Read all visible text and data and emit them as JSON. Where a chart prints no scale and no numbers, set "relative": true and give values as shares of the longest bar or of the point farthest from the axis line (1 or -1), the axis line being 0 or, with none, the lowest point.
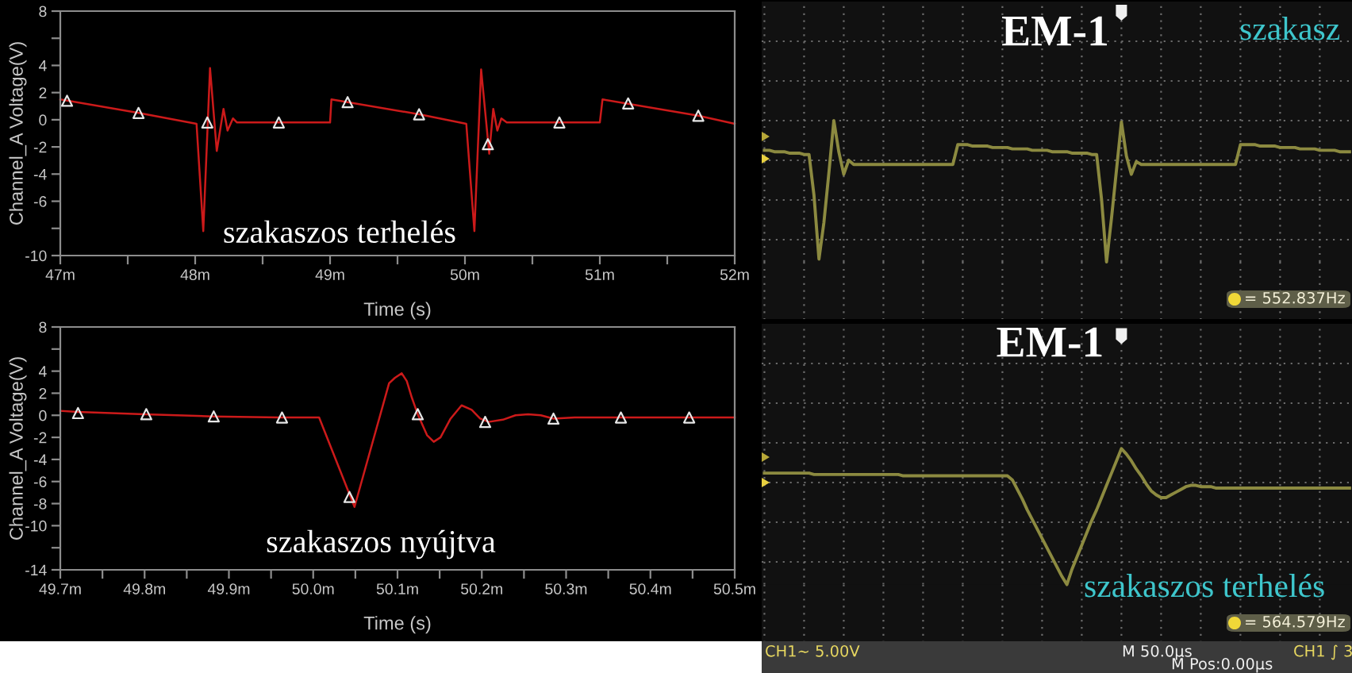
{
  "chart_data": [
    {
      "type": "line",
      "xlabel": "Time (s)",
      "ylabel": "Channel_A Voltage(V)",
      "x": [
        47,
        47.58,
        48.01,
        48.06,
        48.11,
        48.16,
        48.21,
        48.24,
        48.28,
        48.31,
        49.0,
        49.01,
        49.66,
        50.01,
        50.07,
        50.12,
        50.18,
        50.21,
        50.24,
        50.27,
        50.31,
        51.0,
        51.02,
        51.73,
        52.0
      ],
      "series": [
        {
          "color": "#cc1a1a",
          "values": [
            1.5,
            0.5,
            -0.3,
            -8.2,
            3.8,
            -2.3,
            0.8,
            -0.8,
            0.1,
            -0.2,
            -0.2,
            1.5,
            0.4,
            -0.3,
            -8.2,
            3.7,
            -2.5,
            0.8,
            -0.8,
            0.1,
            -0.2,
            -0.2,
            1.5,
            0.3,
            -0.3
          ]
        },
        {
          "type": "scatter",
          "marker": "triangle",
          "color": "#e6e6e6",
          "x": [
            47.05,
            47.58,
            48.09,
            48.62,
            49.13,
            49.66,
            50.17,
            50.7,
            51.21,
            51.73
          ],
          "values": [
            1.4,
            0.5,
            -0.2,
            -0.2,
            1.3,
            0.4,
            -1.8,
            -0.2,
            1.2,
            0.3
          ]
        }
      ],
      "xlim": [
        47,
        52
      ],
      "xticks": [
        {
          "value": 47,
          "label": "47m"
        },
        {
          "value": 47.5,
          "label": null
        },
        {
          "value": 48,
          "label": "48m"
        },
        {
          "value": 48.5,
          "label": null
        },
        {
          "value": 49,
          "label": "49m"
        },
        {
          "value": 49.5,
          "label": null
        },
        {
          "value": 50,
          "label": "50m"
        },
        {
          "value": 50.5,
          "label": null
        },
        {
          "value": 51,
          "label": "51m"
        },
        {
          "value": 51.5,
          "label": null
        },
        {
          "value": 52,
          "label": "52m"
        }
      ],
      "ylim": [
        -10,
        8
      ],
      "yticks": [
        8,
        {
          "value": 6,
          "label": null
        },
        4,
        2,
        0,
        -2,
        -4,
        -6,
        {
          "value": -8,
          "label": null
        },
        -10
      ],
      "annotations": [
        "szakaszos terhelés"
      ]
    },
    {
      "type": "line",
      "relative": true,
      "title": "EM-1",
      "grid": true,
      "tick_labels": false,
      "categories": [
        null,
        null,
        null,
        null,
        null,
        null,
        null,
        null,
        null,
        null,
        null,
        null,
        null,
        null,
        null,
        null,
        null,
        null,
        null,
        null,
        null,
        null,
        null,
        null,
        null,
        null,
        null,
        null,
        null,
        null,
        null,
        null,
        null,
        null,
        null,
        null,
        null,
        null,
        null,
        null,
        null,
        null,
        null,
        null,
        null,
        null,
        null,
        null,
        null,
        null,
        null,
        null,
        null,
        null,
        null,
        null,
        null,
        null,
        null,
        null,
        null,
        null,
        null,
        null,
        null,
        null,
        null,
        null,
        null,
        null,
        null,
        null,
        null,
        null,
        null,
        null,
        null,
        null,
        null,
        null,
        null,
        null,
        null,
        null,
        null,
        null,
        null,
        null,
        null,
        null,
        null,
        null,
        null,
        null,
        null,
        null,
        null,
        null,
        null,
        null,
        null,
        null,
        null,
        null,
        null,
        null,
        null,
        null,
        null,
        null,
        null,
        null,
        null,
        null,
        null,
        null,
        null,
        null,
        null
      ],
      "series": [
        {
          "color": "#8c8a40",
          "values": [
            0.79,
            0.79,
            0.78,
            0.78,
            0.78,
            0.77,
            0.77,
            0.77,
            0.76,
            0.76,
            0.47,
            0.02,
            0.28,
            0.63,
            1.0,
            0.78,
            0.62,
            0.72,
            0.69,
            0.69,
            0.69,
            0.69,
            0.69,
            0.69,
            0.69,
            0.69,
            0.69,
            0.69,
            0.69,
            0.69,
            0.69,
            0.69,
            0.69,
            0.69,
            0.69,
            0.69,
            0.69,
            0.69,
            0.69,
            0.83,
            0.83,
            0.83,
            0.82,
            0.82,
            0.82,
            0.82,
            0.81,
            0.81,
            0.81,
            0.81,
            0.8,
            0.8,
            0.8,
            0.8,
            0.79,
            0.79,
            0.79,
            0.79,
            0.78,
            0.78,
            0.78,
            0.78,
            0.77,
            0.77,
            0.77,
            0.77,
            0.76,
            0.76,
            0.44,
            0.0,
            0.31,
            0.65,
            0.99,
            0.75,
            0.62,
            0.71,
            0.69,
            0.69,
            0.69,
            0.69,
            0.69,
            0.69,
            0.69,
            0.69,
            0.69,
            0.69,
            0.69,
            0.69,
            0.69,
            0.69,
            0.69,
            0.69,
            0.69,
            0.69,
            0.69,
            0.69,
            0.83,
            0.83,
            0.83,
            0.83,
            0.82,
            0.82,
            0.82,
            0.82,
            0.81,
            0.81,
            0.81,
            0.81,
            0.8,
            0.8,
            0.8,
            0.8,
            0.79,
            0.79,
            0.79,
            0.79,
            0.78,
            0.78,
            0.78
          ]
        }
      ],
      "annotations": [
        "szakasz",
        "= 552.837Hz"
      ]
    },
    {
      "type": "line",
      "xlabel": "Time (s)",
      "ylabel": "Channel_A Voltage(V)",
      "x": [
        49.7,
        49.72,
        49.8,
        49.88,
        49.96,
        50.007,
        50.049,
        50.09,
        50.097,
        50.105,
        50.111,
        50.117,
        50.124,
        50.135,
        50.143,
        50.151,
        50.163,
        50.176,
        50.188,
        50.198,
        50.208,
        50.225,
        50.24,
        50.255,
        50.27,
        50.285,
        50.31,
        50.5
      ],
      "series": [
        {
          "color": "#cc1a1a",
          "values": [
            0.4,
            0.3,
            0.1,
            -0.1,
            -0.2,
            -0.2,
            -8.3,
            2.9,
            3.4,
            3.8,
            3.1,
            1.6,
            0.1,
            -1.8,
            -2.4,
            -2.0,
            -0.3,
            0.9,
            0.5,
            -0.3,
            -0.6,
            -0.4,
            0.0,
            0.1,
            0.0,
            -0.3,
            -0.2,
            -0.2
          ]
        },
        {
          "type": "scatter",
          "marker": "triangle",
          "color": "#e6e6e6",
          "x": [
            49.721,
            49.802,
            49.882,
            49.963,
            50.043,
            50.124,
            50.204,
            50.285,
            50.365,
            50.446
          ],
          "values": [
            0.2,
            0.1,
            -0.1,
            -0.2,
            -7.4,
            0.1,
            -0.6,
            -0.3,
            -0.2,
            -0.2
          ]
        }
      ],
      "xlim": [
        49.7,
        50.5
      ],
      "xticks": [
        {
          "value": 49.7,
          "label": "49.7m"
        },
        {
          "value": 49.75,
          "label": null
        },
        {
          "value": 49.8,
          "label": "49.8m"
        },
        {
          "value": 49.85,
          "label": null
        },
        {
          "value": 49.9,
          "label": "49.9m"
        },
        {
          "value": 49.95,
          "label": null
        },
        {
          "value": 50.0,
          "label": "50.0m"
        },
        {
          "value": 50.05,
          "label": null
        },
        {
          "value": 50.1,
          "label": "50.1m"
        },
        {
          "value": 50.15,
          "label": null
        },
        {
          "value": 50.2,
          "label": "50.2m"
        },
        {
          "value": 50.25,
          "label": null
        },
        {
          "value": 50.3,
          "label": "50.3m"
        },
        {
          "value": 50.35,
          "label": null
        },
        {
          "value": 50.4,
          "label": "50.4m"
        },
        {
          "value": 50.45,
          "label": null
        },
        {
          "value": 50.5,
          "label": "50.5m"
        }
      ],
      "ylim": [
        -14,
        8
      ],
      "yticks": [
        8,
        {
          "value": 6,
          "label": null
        },
        4,
        2,
        0,
        -2,
        -4,
        -6,
        -8,
        -10,
        {
          "value": -12,
          "label": null
        },
        -14
      ],
      "annotations": [
        "szakaszos nyújtva"
      ]
    },
    {
      "type": "line",
      "relative": true,
      "title": "EM-1",
      "grid": true,
      "tick_labels": false,
      "categories": [
        null,
        null,
        null,
        null,
        null,
        null,
        null,
        null,
        null,
        null,
        null,
        null,
        null,
        null,
        null,
        null,
        null,
        null,
        null,
        null,
        null,
        null,
        null,
        null,
        null,
        null,
        null,
        null,
        null,
        null,
        null,
        null,
        null,
        null,
        null,
        null,
        null,
        null,
        null,
        null,
        null,
        null,
        null,
        null,
        null,
        null,
        null,
        null,
        null,
        null,
        null,
        null,
        null,
        null,
        null,
        null,
        null,
        null,
        null,
        null,
        null,
        null,
        null,
        null,
        null,
        null,
        null,
        null,
        null,
        null,
        null,
        null,
        null,
        null,
        null,
        null,
        null,
        null,
        null,
        null,
        null,
        null,
        null,
        null,
        null,
        null,
        null,
        null,
        null,
        null,
        null,
        null,
        null,
        null,
        null,
        null,
        null,
        null,
        null,
        null,
        null,
        null,
        null,
        null,
        null,
        null,
        null,
        null,
        null,
        null,
        null,
        null,
        null,
        null,
        null,
        null,
        null,
        null,
        null
      ],
      "series": [
        {
          "color": "#8c8a40",
          "values": [
            0.82,
            0.82,
            0.82,
            0.82,
            0.82,
            0.82,
            0.82,
            0.82,
            0.82,
            0.82,
            0.81,
            0.81,
            0.81,
            0.81,
            0.81,
            0.81,
            0.81,
            0.81,
            0.81,
            0.81,
            0.81,
            0.81,
            0.81,
            0.81,
            0.81,
            0.81,
            0.81,
            0.81,
            0.8,
            0.8,
            0.8,
            0.8,
            0.8,
            0.8,
            0.8,
            0.8,
            0.8,
            0.8,
            0.8,
            0.8,
            0.8,
            0.8,
            0.8,
            0.8,
            0.8,
            0.8,
            0.8,
            0.8,
            0.8,
            0.8,
            0.77,
            0.7,
            0.63,
            0.55,
            0.48,
            0.41,
            0.34,
            0.27,
            0.2,
            0.13,
            0.06,
            0.0,
            0.11,
            0.2,
            0.29,
            0.38,
            0.47,
            0.55,
            0.64,
            0.73,
            0.82,
            0.91,
            1.0,
            0.96,
            0.91,
            0.85,
            0.8,
            0.74,
            0.69,
            0.66,
            0.64,
            0.64,
            0.66,
            0.68,
            0.7,
            0.72,
            0.73,
            0.73,
            0.72,
            0.72,
            0.72,
            0.71,
            0.71,
            0.71,
            0.71,
            0.71,
            0.71,
            0.71,
            0.71,
            0.71,
            0.71,
            0.71,
            0.71,
            0.71,
            0.71,
            0.71,
            0.71,
            0.71,
            0.71,
            0.71,
            0.71,
            0.71,
            0.71,
            0.71,
            0.71,
            0.71,
            0.71,
            0.71,
            0.71
          ]
        }
      ],
      "annotations": [
        "szakaszos terhelés",
        "= 564.579Hz",
        "CH1~ 5.00V",
        "M 50.0μs",
        "M Pos:0.00μs",
        "CH1 ∫ 3"
      ]
    }
  ]
}
